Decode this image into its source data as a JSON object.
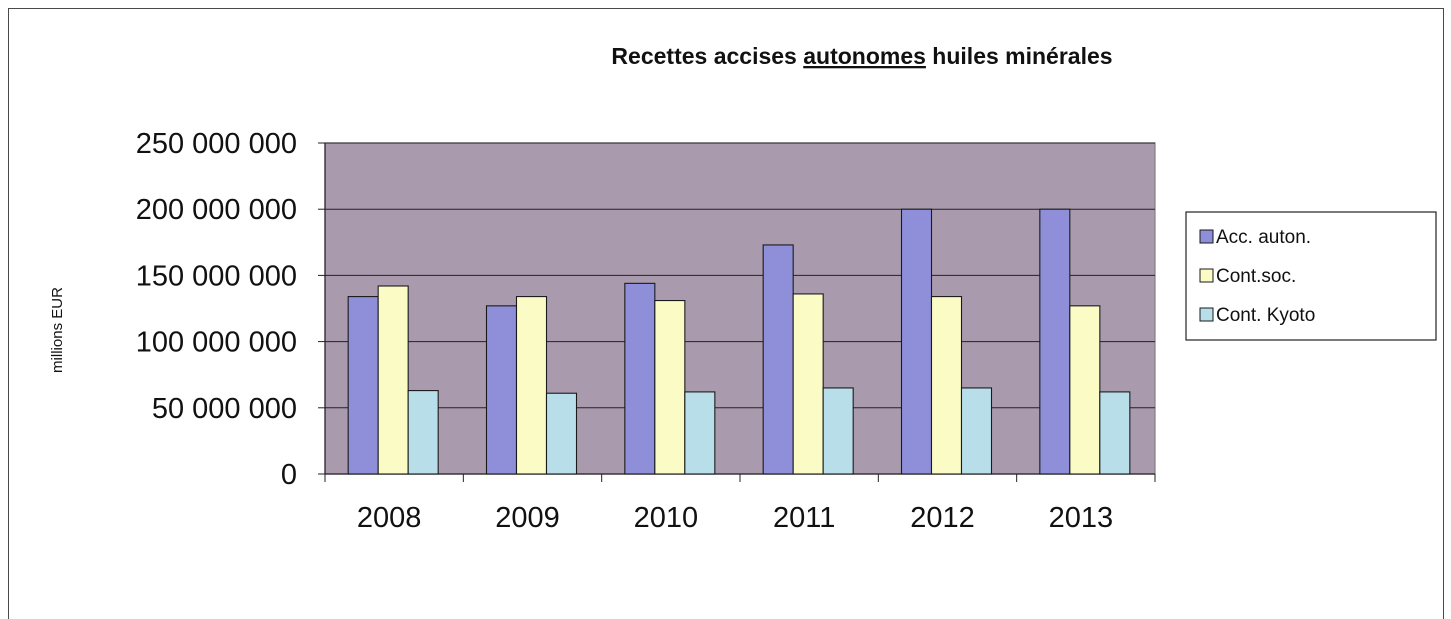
{
  "chart_data": {
    "type": "bar",
    "title_parts": [
      "Recettes accises ",
      "autonomes",
      " huiles minérales"
    ],
    "ylabel": "millions EUR",
    "xlabel": "",
    "categories": [
      "2008",
      "2009",
      "2010",
      "2011",
      "2012",
      "2013"
    ],
    "ylim": [
      0,
      250000000
    ],
    "yticks": [
      0,
      50000000,
      100000000,
      150000000,
      200000000,
      250000000
    ],
    "ytick_labels": [
      "0",
      "50 000 000",
      "100 000 000",
      "150 000 000",
      "200 000 000",
      "250 000 000"
    ],
    "grid": true,
    "legend_position": "right",
    "plot_background": "#a99bad",
    "series": [
      {
        "name": "Acc. auton.",
        "color": "#8e8fd8",
        "values": [
          134000000,
          127000000,
          144000000,
          173000000,
          200000000,
          200000000
        ]
      },
      {
        "name": "Cont.soc.",
        "color": "#fbfbc6",
        "values": [
          142000000,
          134000000,
          131000000,
          136000000,
          134000000,
          127000000
        ]
      },
      {
        "name": "Cont. Kyoto",
        "color": "#b8dfe9",
        "values": [
          63000000,
          61000000,
          62000000,
          65000000,
          65000000,
          62000000
        ]
      }
    ]
  }
}
